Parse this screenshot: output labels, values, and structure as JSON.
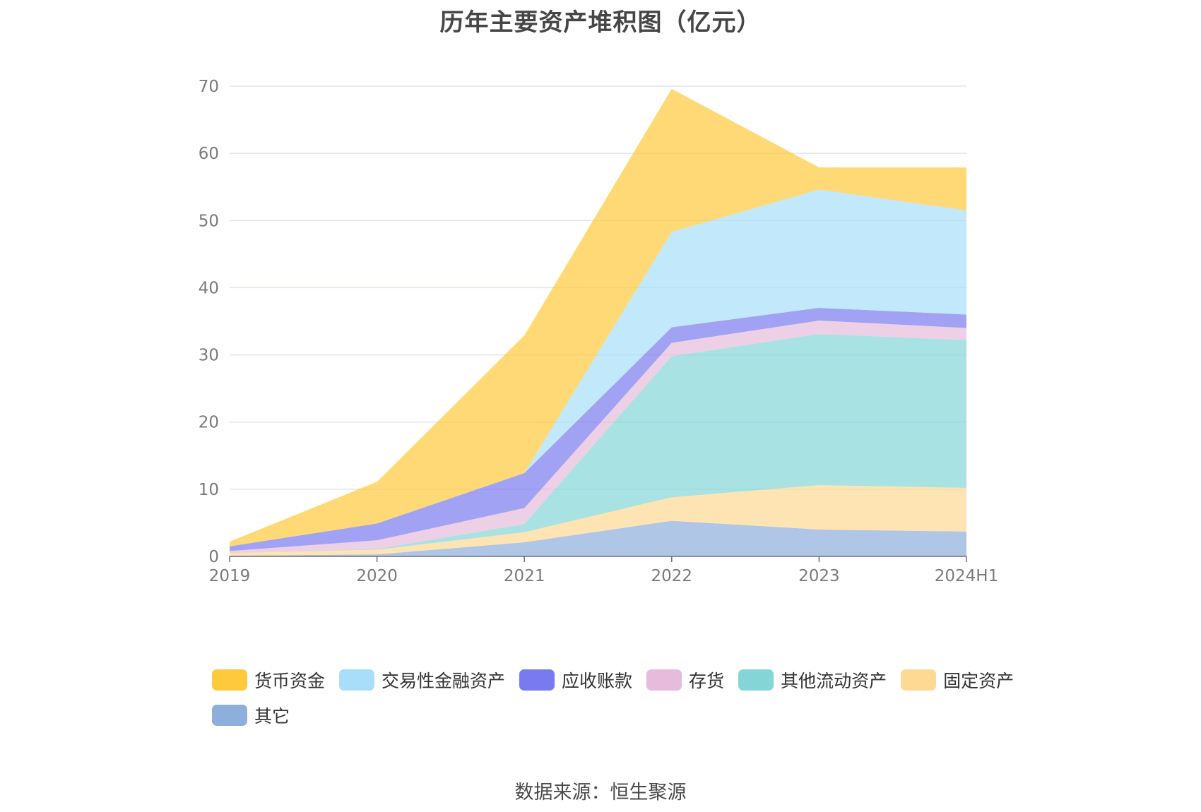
{
  "title": "历年主要资产堆积图（亿元）",
  "source": "数据来源：恒生聚源",
  "chart_data": {
    "type": "area",
    "stacked": true,
    "categories": [
      "2019",
      "2020",
      "2021",
      "2022",
      "2023",
      "2024H1"
    ],
    "ylim": [
      0,
      70
    ],
    "yticks": [
      0,
      10,
      20,
      30,
      40,
      50,
      60,
      70
    ],
    "grid": true,
    "legend_position": "bottom",
    "series": [
      {
        "name": "其它",
        "color": "#8eaedb",
        "values": [
          0.1,
          0.3,
          2.1,
          5.3,
          4.0,
          3.7
        ]
      },
      {
        "name": "固定资产",
        "color": "#fed993",
        "values": [
          0.4,
          0.7,
          1.5,
          3.5,
          6.6,
          6.5
        ]
      },
      {
        "name": "其他流动资产",
        "color": "#84d6d6",
        "values": [
          0.0,
          0.1,
          1.2,
          21.0,
          22.5,
          22.0
        ]
      },
      {
        "name": "存货",
        "color": "#e6bbdb",
        "values": [
          0.3,
          1.3,
          2.4,
          2.0,
          2.0,
          1.8
        ]
      },
      {
        "name": "应收账款",
        "color": "#7a7af0",
        "values": [
          0.7,
          2.5,
          5.2,
          2.3,
          1.9,
          2.0
        ]
      },
      {
        "name": "交易性金融资产",
        "color": "#a8def9",
        "values": [
          0.0,
          0.0,
          0.0,
          14.2,
          17.6,
          15.5
        ]
      },
      {
        "name": "货币资金",
        "color": "#fec93c",
        "values": [
          0.7,
          6.2,
          20.5,
          21.3,
          3.3,
          6.4
        ]
      }
    ],
    "legend_order": [
      "货币资金",
      "交易性金融资产",
      "应收账款",
      "存货",
      "其他流动资产",
      "固定资产",
      "其它"
    ]
  }
}
